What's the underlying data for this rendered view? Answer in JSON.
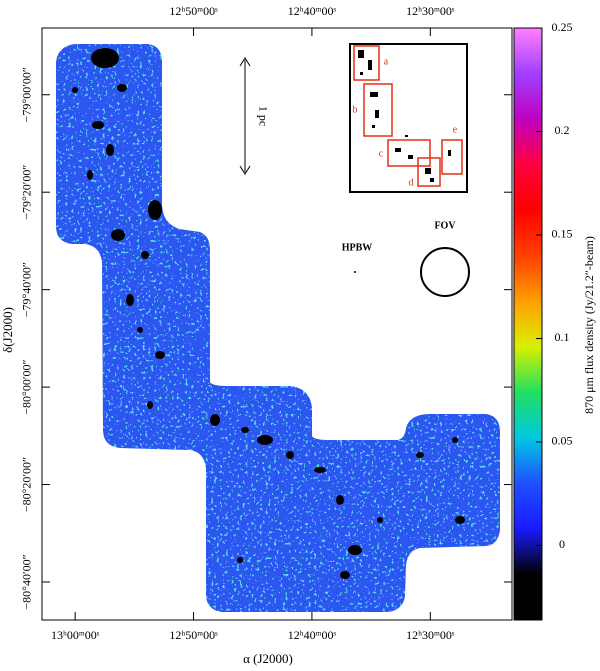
{
  "chart_data": {
    "type": "map",
    "xlabel": "α (J2000)",
    "ylabel": "δ(J2000)",
    "xlim": [
      782.8,
      743.1
    ],
    "ylim": [
      -4847.8,
      -4726.3
    ],
    "xticks": [
      {
        "value": 780,
        "label": "13ʰ00ᵐ00ˢ"
      },
      {
        "value": 770,
        "label": "12ʰ50ᵐ00ˢ"
      },
      {
        "value": 760,
        "label": "12ʰ40ᵐ00ˢ"
      },
      {
        "value": 750,
        "label": "12ʰ30ᵐ00ˢ"
      }
    ],
    "x2ticks": [
      {
        "value": 770,
        "label": "12ʰ50ᵐ00ˢ"
      },
      {
        "value": 760,
        "label": "12ʰ40ᵐ00ˢ"
      },
      {
        "value": 750,
        "label": "12ʰ30ᵐ00ˢ"
      }
    ],
    "yticks": [
      {
        "value": -4740,
        "label": "−79°00′00″"
      },
      {
        "value": -4760,
        "label": "−79°20′00″"
      },
      {
        "value": -4780,
        "label": "−79°40′00″"
      },
      {
        "value": -4800,
        "label": "−80°00′00″"
      },
      {
        "value": -4820,
        "label": "−80°20′00″"
      },
      {
        "value": -4840,
        "label": "−80°40′00″"
      }
    ],
    "colorbar": {
      "label": "870 μm flux density (Jy/21.2″-beam)",
      "ylim": [
        -0.036,
        0.25
      ],
      "ticks": [
        0,
        0.05,
        0.1,
        0.15,
        0.2,
        0.25
      ],
      "colormap": [
        "#000000",
        "#000000",
        "#1a1aff",
        "#2050ff",
        "#00c8e0",
        "#20e060",
        "#d8f000",
        "#ffa000",
        "#ff4000",
        "#ff0000",
        "#ff0040",
        "#c000c0",
        "#a040ff",
        "#ff80ff"
      ]
    },
    "annotations": {
      "scale_bar": "1 pc",
      "hpbw": "HPBW",
      "fov": "FOV"
    },
    "inset_labels": [
      "a",
      "b",
      "c",
      "d",
      "e"
    ]
  }
}
